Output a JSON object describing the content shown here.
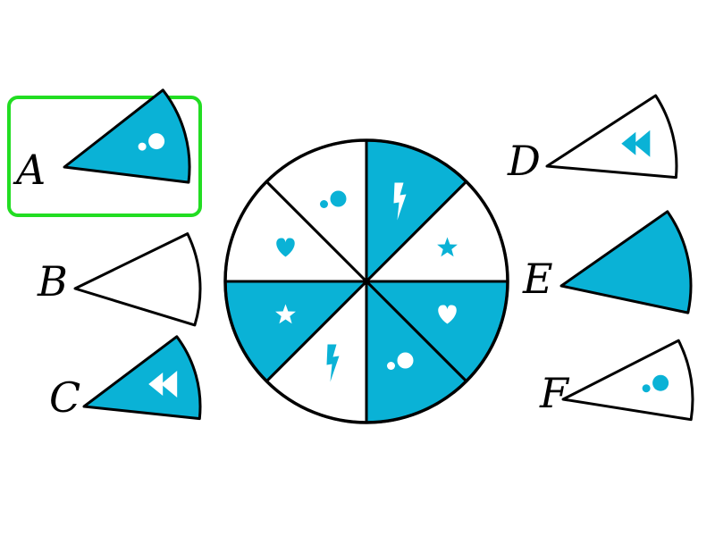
{
  "colors": {
    "blue": "#0ab2d6",
    "white": "#ffffff",
    "outline": "#000000",
    "selected": "#22dd22"
  },
  "wheel": {
    "slices": [
      {
        "fill": "blue",
        "icon": "lightning-icon"
      },
      {
        "fill": "white",
        "icon": "star-icon"
      },
      {
        "fill": "blue",
        "icon": "heart-icon"
      },
      {
        "fill": "blue",
        "icon": "dots-icon"
      },
      {
        "fill": "white",
        "icon": "lightning-icon"
      },
      {
        "fill": "blue",
        "icon": "star-icon"
      },
      {
        "fill": "white",
        "icon": "heart-icon"
      },
      {
        "fill": "white",
        "icon": "dots-icon"
      }
    ]
  },
  "options": [
    {
      "letter": "A",
      "fill": "blue",
      "icon": "dots-icon",
      "selected": true
    },
    {
      "letter": "B",
      "fill": "white",
      "icon": "none",
      "selected": false
    },
    {
      "letter": "C",
      "fill": "blue",
      "icon": "double-triangle-icon",
      "selected": false
    },
    {
      "letter": "D",
      "fill": "white",
      "icon": "double-triangle-icon",
      "selected": false
    },
    {
      "letter": "E",
      "fill": "blue",
      "icon": "none",
      "selected": false
    },
    {
      "letter": "F",
      "fill": "white",
      "icon": "dots-icon",
      "selected": false
    }
  ]
}
